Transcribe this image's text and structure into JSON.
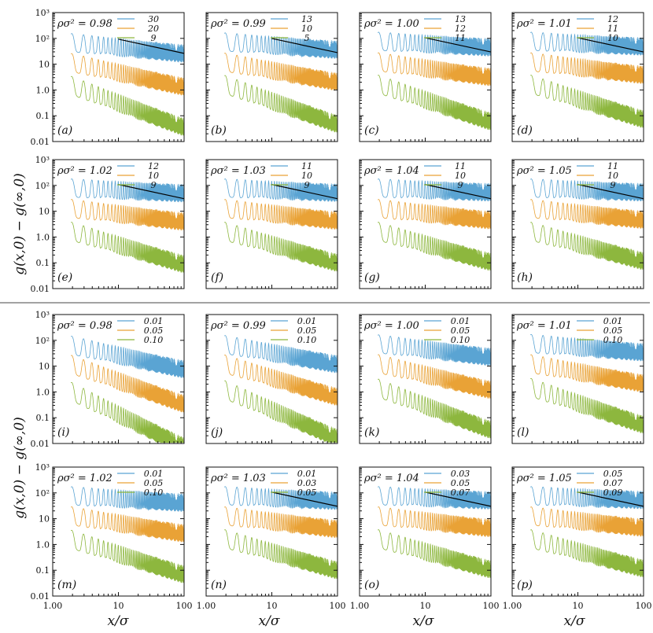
{
  "figure": {
    "y_axis_title": "g(x,0) − g(∞,0)",
    "x_axis_title": "x/σ"
  },
  "chart_data": {
    "type": "line",
    "xscale": "log",
    "yscale": "log",
    "xlim": [
      1,
      100
    ],
    "ylim": [
      0.01,
      1000
    ],
    "x_ticks": [
      "1.00",
      "10",
      "100"
    ],
    "y_ticks": [
      "0.01",
      "0.1",
      "1.0",
      "10",
      "10²",
      "10³"
    ],
    "series_colors": [
      "#5aa4d3",
      "#e9a236",
      "#8db73e"
    ],
    "reference_line_color": "#000000",
    "panels": [
      {
        "letter": "(a)",
        "title": "ρσ² = 0.98",
        "legend": [
          "30",
          "20",
          "9"
        ],
        "ref_line": true,
        "scales": [
          150,
          25,
          3.2
        ],
        "decay": [
          0.25,
          0.55,
          0.95
        ]
      },
      {
        "letter": "(b)",
        "title": "ρσ² = 0.99",
        "legend": [
          "13",
          "10",
          "5"
        ],
        "ref_line": true,
        "scales": [
          160,
          26,
          3.5
        ],
        "decay": [
          0.18,
          0.45,
          0.9
        ]
      },
      {
        "letter": "(c)",
        "title": "ρσ² = 1.00",
        "legend": [
          "13",
          "12",
          "11"
        ],
        "ref_line": true,
        "scales": [
          170,
          27,
          3.6
        ],
        "decay": [
          0.14,
          0.35,
          0.85
        ]
      },
      {
        "letter": "(d)",
        "title": "ρσ² = 1.01",
        "legend": [
          "12",
          "11",
          "10"
        ],
        "ref_line": true,
        "scales": [
          170,
          27,
          3.6
        ],
        "decay": [
          0.12,
          0.3,
          0.8
        ]
      },
      {
        "letter": "(e)",
        "title": "ρσ² = 1.02",
        "legend": [
          "12",
          "10",
          "9"
        ],
        "ref_line": true,
        "scales": [
          175,
          28,
          3.6
        ],
        "decay": [
          0.12,
          0.3,
          0.75
        ]
      },
      {
        "letter": "(f)",
        "title": "ρσ² = 1.03",
        "legend": [
          "11",
          "10",
          "9"
        ],
        "ref_line": true,
        "scales": [
          175,
          28,
          3.6
        ],
        "decay": [
          0.11,
          0.28,
          0.72
        ]
      },
      {
        "letter": "(g)",
        "title": "ρσ² = 1.04",
        "legend": [
          "11",
          "10",
          "9"
        ],
        "ref_line": true,
        "scales": [
          175,
          28,
          3.6
        ],
        "decay": [
          0.1,
          0.27,
          0.7
        ]
      },
      {
        "letter": "(h)",
        "title": "ρσ² = 1.05",
        "legend": [
          "11",
          "10",
          "9"
        ],
        "ref_line": true,
        "scales": [
          175,
          28,
          3.6
        ],
        "decay": [
          0.1,
          0.26,
          0.68
        ]
      },
      {
        "letter": "(i)",
        "title": "ρσ² = 0.98",
        "legend": [
          "0.01",
          "0.05",
          "0.10"
        ],
        "ref_line": false,
        "scales": [
          140,
          25,
          2.2
        ],
        "decay": [
          0.55,
          0.9,
          1.25
        ]
      },
      {
        "letter": "(j)",
        "title": "ρσ² = 0.99",
        "legend": [
          "0.01",
          "0.05",
          "0.10"
        ],
        "ref_line": false,
        "scales": [
          150,
          26,
          2.6
        ],
        "decay": [
          0.45,
          0.75,
          1.1
        ]
      },
      {
        "letter": "(k)",
        "title": "ρσ² = 1.00",
        "legend": [
          "0.01",
          "0.05",
          "0.10"
        ],
        "ref_line": false,
        "scales": [
          160,
          27,
          3.0
        ],
        "decay": [
          0.3,
          0.6,
          0.95
        ]
      },
      {
        "letter": "(l)",
        "title": "ρσ² = 1.01",
        "legend": [
          "0.01",
          "0.05",
          "0.10"
        ],
        "ref_line": false,
        "scales": [
          165,
          27,
          3.2
        ],
        "decay": [
          0.2,
          0.45,
          0.85
        ]
      },
      {
        "letter": "(m)",
        "title": "ρσ² = 1.02",
        "legend": [
          "0.01",
          "0.05",
          "0.10"
        ],
        "ref_line": false,
        "scales": [
          170,
          28,
          3.4
        ],
        "decay": [
          0.16,
          0.4,
          0.8
        ]
      },
      {
        "letter": "(n)",
        "title": "ρσ² = 1.03",
        "legend": [
          "0.01",
          "0.03",
          "0.05"
        ],
        "ref_line": true,
        "scales": [
          172,
          28,
          3.6
        ],
        "decay": [
          0.12,
          0.3,
          0.72
        ]
      },
      {
        "letter": "(o)",
        "title": "ρσ² = 1.04",
        "legend": [
          "0.03",
          "0.05",
          "0.07"
        ],
        "ref_line": true,
        "scales": [
          172,
          28,
          3.6
        ],
        "decay": [
          0.11,
          0.28,
          0.7
        ]
      },
      {
        "letter": "(p)",
        "title": "ρσ² = 1.05",
        "legend": [
          "0.05",
          "0.07",
          "0.09"
        ],
        "ref_line": true,
        "scales": [
          172,
          28,
          3.6
        ],
        "decay": [
          0.1,
          0.27,
          0.68
        ]
      }
    ]
  }
}
